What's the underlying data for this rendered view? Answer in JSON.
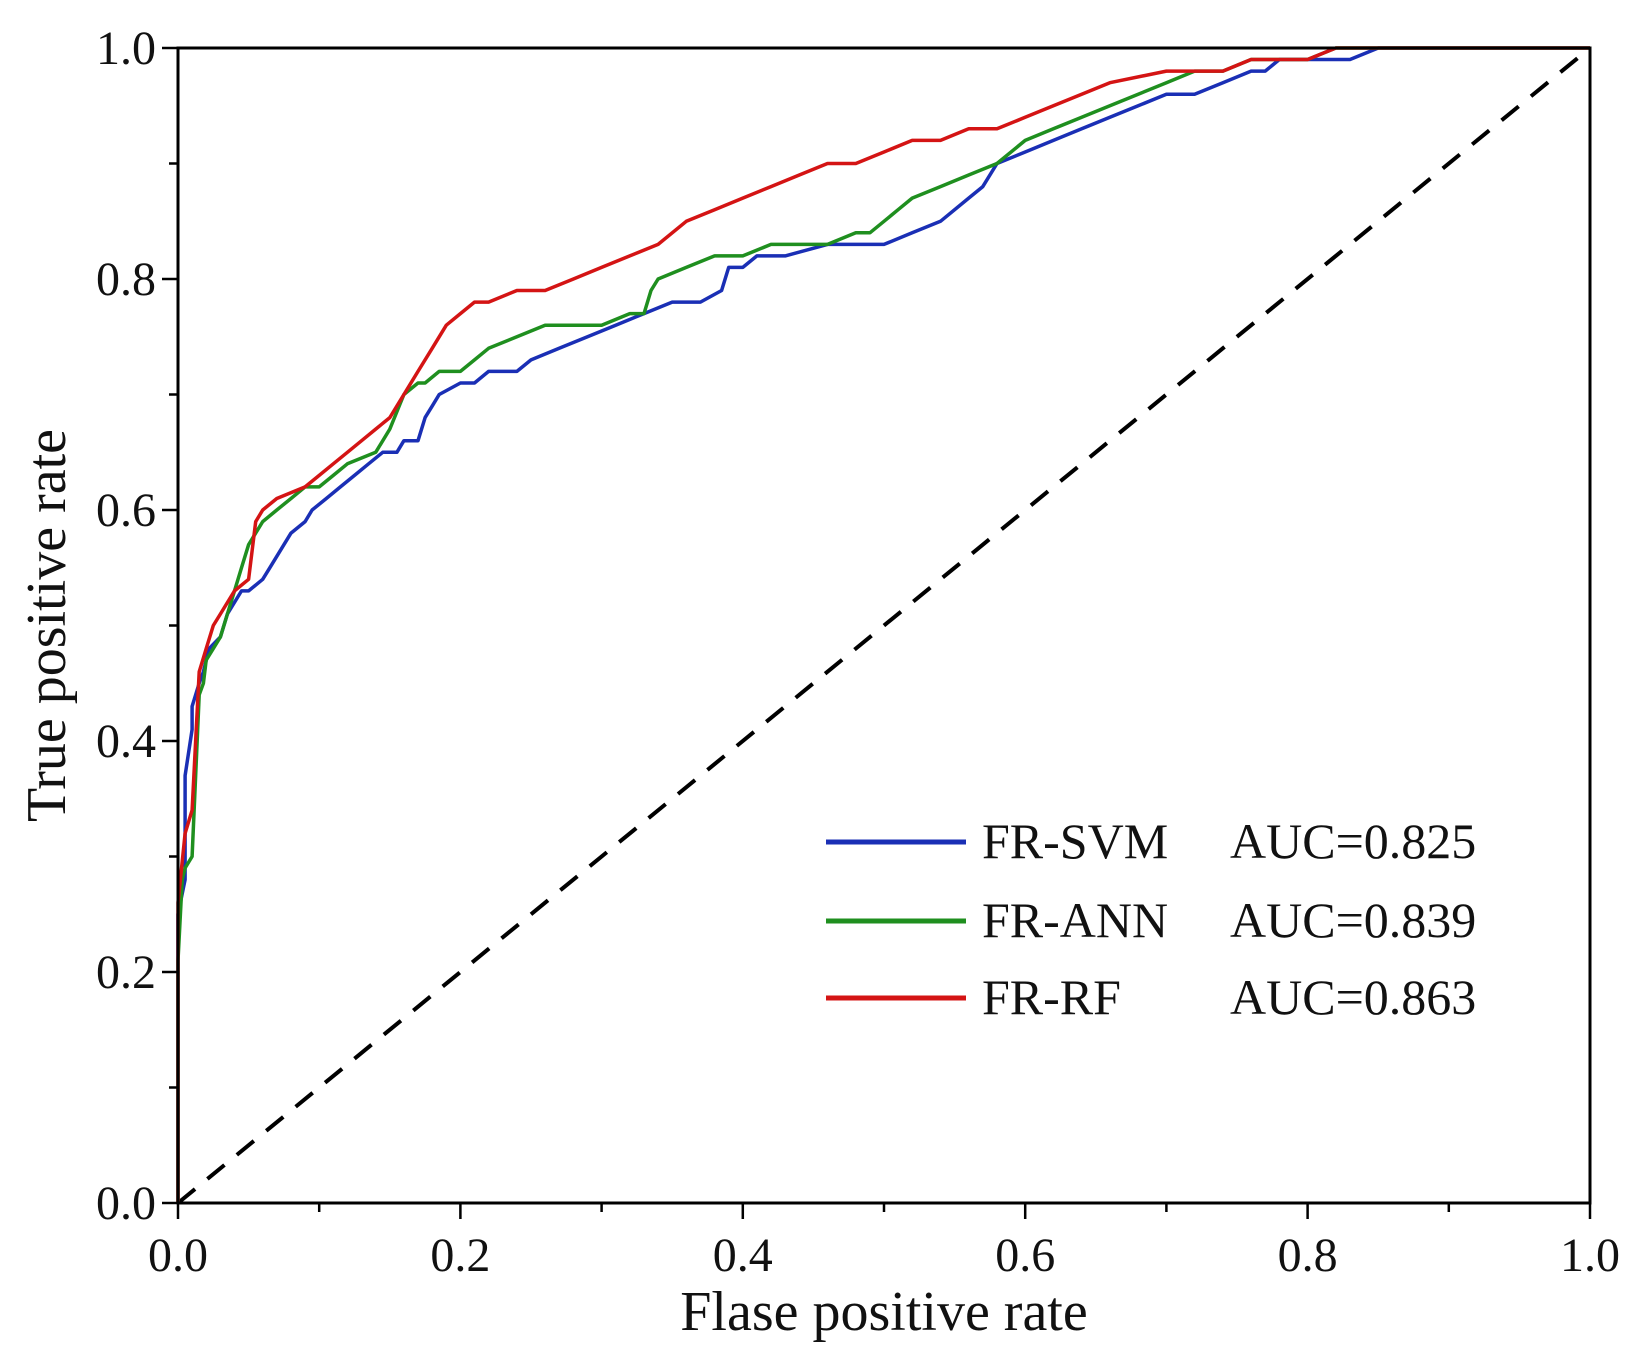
{
  "chart_data": {
    "type": "line",
    "title": "",
    "xlabel": "Flase positive rate",
    "ylabel": "True positive rate",
    "xlim": [
      0,
      1
    ],
    "ylim": [
      0,
      1
    ],
    "x_ticks": [
      "0.0",
      "0.2",
      "0.4",
      "0.6",
      "0.8",
      "1.0"
    ],
    "y_ticks": [
      "0.0",
      "0.2",
      "0.4",
      "0.6",
      "0.8",
      "1.0"
    ],
    "grid": false,
    "legend_position": "bottom-right",
    "reference_line": {
      "name": "random-diagonal",
      "x": [
        0,
        1
      ],
      "y": [
        0,
        1
      ],
      "color": "#000000",
      "style": "dashed"
    },
    "series": [
      {
        "name": "FR-SVM",
        "auc_label": "AUC=0.825",
        "color": "#1a2fb5",
        "x": [
          0,
          0,
          0.005,
          0.005,
          0.01,
          0.01,
          0.015,
          0.018,
          0.022,
          0.03,
          0.035,
          0.045,
          0.05,
          0.06,
          0.065,
          0.075,
          0.08,
          0.09,
          0.095,
          0.105,
          0.115,
          0.125,
          0.135,
          0.145,
          0.155,
          0.16,
          0.17,
          0.175,
          0.18,
          0.185,
          0.2,
          0.21,
          0.22,
          0.24,
          0.25,
          0.27,
          0.29,
          0.31,
          0.33,
          0.35,
          0.37,
          0.385,
          0.39,
          0.4,
          0.41,
          0.43,
          0.46,
          0.48,
          0.5,
          0.52,
          0.54,
          0.56,
          0.57,
          0.58,
          0.6,
          0.62,
          0.64,
          0.66,
          0.68,
          0.7,
          0.72,
          0.74,
          0.76,
          0.77,
          0.78,
          0.8,
          0.83,
          0.85,
          0.87,
          1.0
        ],
        "y": [
          0,
          0.25,
          0.28,
          0.37,
          0.41,
          0.43,
          0.45,
          0.46,
          0.48,
          0.49,
          0.51,
          0.53,
          0.53,
          0.54,
          0.55,
          0.57,
          0.58,
          0.59,
          0.6,
          0.61,
          0.62,
          0.63,
          0.64,
          0.65,
          0.65,
          0.66,
          0.66,
          0.68,
          0.69,
          0.7,
          0.71,
          0.71,
          0.72,
          0.72,
          0.73,
          0.74,
          0.75,
          0.76,
          0.77,
          0.78,
          0.78,
          0.79,
          0.81,
          0.81,
          0.82,
          0.82,
          0.83,
          0.83,
          0.83,
          0.84,
          0.85,
          0.87,
          0.88,
          0.9,
          0.91,
          0.92,
          0.93,
          0.94,
          0.95,
          0.96,
          0.96,
          0.97,
          0.98,
          0.98,
          0.99,
          0.99,
          0.99,
          1.0,
          1.0,
          1.0
        ]
      },
      {
        "name": "FR-ANN",
        "auc_label": "AUC=0.839",
        "color": "#1f8f1f",
        "x": [
          0,
          0,
          0.003,
          0.005,
          0.01,
          0.015,
          0.018,
          0.02,
          0.025,
          0.03,
          0.035,
          0.04,
          0.045,
          0.05,
          0.055,
          0.06,
          0.07,
          0.08,
          0.09,
          0.1,
          0.11,
          0.12,
          0.14,
          0.15,
          0.16,
          0.17,
          0.175,
          0.185,
          0.2,
          0.21,
          0.22,
          0.24,
          0.26,
          0.28,
          0.3,
          0.32,
          0.33,
          0.335,
          0.34,
          0.36,
          0.38,
          0.4,
          0.42,
          0.44,
          0.46,
          0.48,
          0.49,
          0.5,
          0.51,
          0.52,
          0.54,
          0.56,
          0.58,
          0.6,
          0.62,
          0.64,
          0.66,
          0.68,
          0.7,
          0.72,
          0.74,
          0.76,
          0.78,
          0.8,
          0.82,
          0.84,
          1.0
        ],
        "y": [
          0,
          0.21,
          0.28,
          0.29,
          0.3,
          0.44,
          0.45,
          0.47,
          0.48,
          0.49,
          0.51,
          0.53,
          0.55,
          0.57,
          0.58,
          0.59,
          0.6,
          0.61,
          0.62,
          0.62,
          0.63,
          0.64,
          0.65,
          0.67,
          0.7,
          0.71,
          0.71,
          0.72,
          0.72,
          0.73,
          0.74,
          0.75,
          0.76,
          0.76,
          0.76,
          0.77,
          0.77,
          0.79,
          0.8,
          0.81,
          0.82,
          0.82,
          0.83,
          0.83,
          0.83,
          0.84,
          0.84,
          0.85,
          0.86,
          0.87,
          0.88,
          0.89,
          0.9,
          0.92,
          0.93,
          0.94,
          0.95,
          0.96,
          0.97,
          0.98,
          0.98,
          0.99,
          0.99,
          0.99,
          1.0,
          1.0,
          1.0
        ]
      },
      {
        "name": "FR-RF",
        "auc_label": "AUC=0.863",
        "color": "#d41414",
        "x": [
          0,
          0,
          0.005,
          0.01,
          0.015,
          0.02,
          0.025,
          0.03,
          0.04,
          0.05,
          0.055,
          0.06,
          0.07,
          0.09,
          0.1,
          0.11,
          0.12,
          0.13,
          0.14,
          0.15,
          0.16,
          0.17,
          0.18,
          0.19,
          0.2,
          0.21,
          0.22,
          0.24,
          0.26,
          0.28,
          0.3,
          0.32,
          0.34,
          0.36,
          0.38,
          0.4,
          0.42,
          0.44,
          0.46,
          0.48,
          0.5,
          0.52,
          0.54,
          0.56,
          0.58,
          0.6,
          0.62,
          0.64,
          0.66,
          0.7,
          0.72,
          0.74,
          0.76,
          0.78,
          0.8,
          0.82,
          1.0
        ],
        "y": [
          0,
          0.26,
          0.32,
          0.34,
          0.46,
          0.48,
          0.5,
          0.51,
          0.53,
          0.54,
          0.59,
          0.6,
          0.61,
          0.62,
          0.63,
          0.64,
          0.65,
          0.66,
          0.67,
          0.68,
          0.7,
          0.72,
          0.74,
          0.76,
          0.77,
          0.78,
          0.78,
          0.79,
          0.79,
          0.8,
          0.81,
          0.82,
          0.83,
          0.85,
          0.86,
          0.87,
          0.88,
          0.89,
          0.9,
          0.9,
          0.91,
          0.92,
          0.92,
          0.93,
          0.93,
          0.94,
          0.95,
          0.96,
          0.97,
          0.98,
          0.98,
          0.98,
          0.99,
          0.99,
          0.99,
          1.0,
          1.0
        ]
      }
    ]
  }
}
